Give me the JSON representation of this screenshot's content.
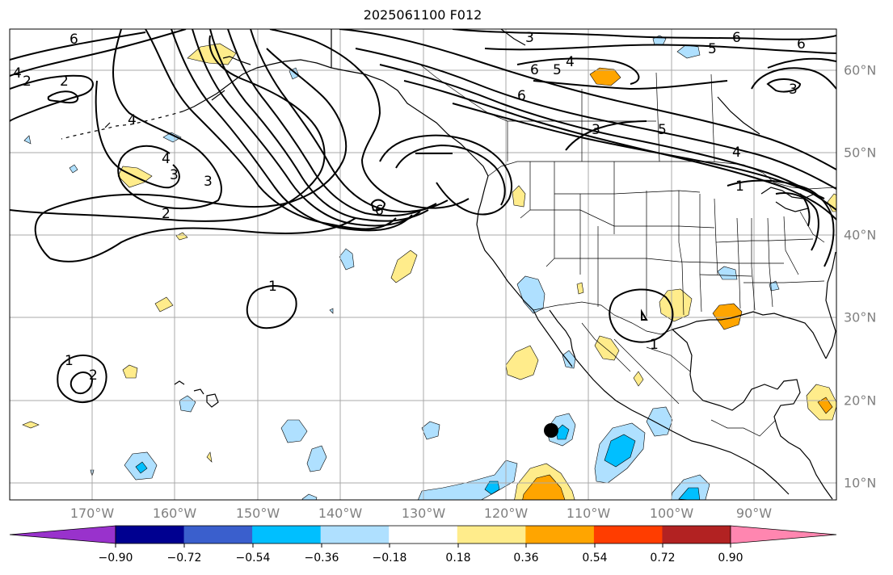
{
  "map": {
    "title": "2025061100 F012",
    "lon_labels": [
      "170°W",
      "160°W",
      "150°W",
      "140°W",
      "130°W",
      "120°W",
      "110°W",
      "100°W",
      "90°W"
    ],
    "lat_labels": [
      "60°N",
      "50°N",
      "40°N",
      "30°N",
      "20°N",
      "10°N"
    ],
    "lon_range": [
      -180,
      -80
    ],
    "lat_range": [
      8,
      65
    ],
    "contour_labels": [
      "6",
      "4",
      "2",
      "2",
      "4",
      "3",
      "2",
      "6",
      "4",
      "5",
      "5",
      "6",
      "4",
      "3",
      "6",
      "3",
      "5",
      "4",
      "1",
      "6",
      "1",
      "1",
      "2",
      "1",
      "3",
      "6",
      "3"
    ],
    "storm_marker": {
      "lon": -114.5,
      "lat": 16.5
    }
  },
  "colorbar": {
    "tick_labels": [
      "−0.90",
      "−0.72",
      "−0.54",
      "−0.36",
      "−0.18",
      "0.18",
      "0.36",
      "0.54",
      "0.72",
      "0.90"
    ],
    "colors": {
      "under": "#9932cc",
      "bins": [
        "#000090",
        "#3a5fcd",
        "#00bfff",
        "#afe0ff",
        "#ffffff",
        "#ffec8b",
        "#ffa500",
        "#ff3d00",
        "#b22222"
      ],
      "over": "#ff86b0"
    }
  },
  "fill_colors": {
    "light_blue": "#afe0ff",
    "blue": "#00bfff",
    "yellow": "#ffec8b",
    "orange": "#ffa500"
  }
}
